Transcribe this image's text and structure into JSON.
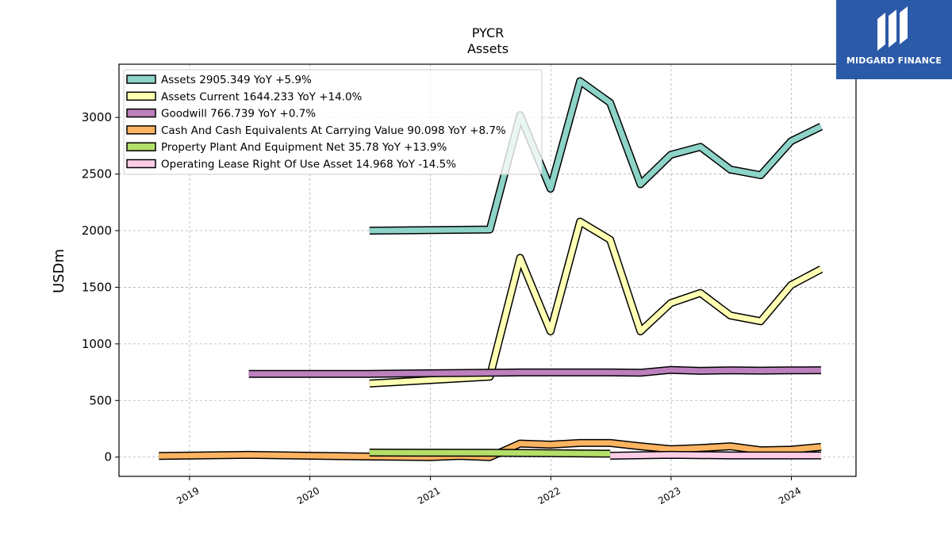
{
  "brand": {
    "name": "MIDGARD FINANCE",
    "color": "#2b5aa8"
  },
  "chart_data": {
    "type": "line",
    "title": "PYCR",
    "subtitle": "Assets",
    "ylabel": "USDm",
    "xlabel": "",
    "ylim": [
      -170,
      3470
    ],
    "xlim": [
      "2018-06-01",
      "2024-07-15"
    ],
    "yticks": [
      0,
      500,
      1000,
      1500,
      2000,
      2500,
      3000
    ],
    "xticks": [
      "2019",
      "2020",
      "2021",
      "2022",
      "2023",
      "2024"
    ],
    "grid": true,
    "legend_position": "top-left",
    "series": [
      {
        "name": "Assets  2905.349 YoY +5.9%",
        "color": "#8dd3c7",
        "points": [
          [
            "2020-06-30",
            2000
          ],
          [
            "2021-06-30",
            2010
          ],
          [
            "2021-09-30",
            3020
          ],
          [
            "2021-12-31",
            2370
          ],
          [
            "2022-03-31",
            3320
          ],
          [
            "2022-06-30",
            3130
          ],
          [
            "2022-09-30",
            2410
          ],
          [
            "2022-12-31",
            2670
          ],
          [
            "2023-03-31",
            2740
          ],
          [
            "2023-06-30",
            2540
          ],
          [
            "2023-09-30",
            2490
          ],
          [
            "2023-12-31",
            2790
          ],
          [
            "2024-03-31",
            2920
          ]
        ]
      },
      {
        "name": "Assets Current  1644.233 YoY +14.0%",
        "color": "#ffffb3",
        "points": [
          [
            "2020-06-30",
            650
          ],
          [
            "2021-06-30",
            710
          ],
          [
            "2021-09-30",
            1760
          ],
          [
            "2021-12-31",
            1110
          ],
          [
            "2022-03-31",
            2080
          ],
          [
            "2022-06-30",
            1920
          ],
          [
            "2022-09-30",
            1110
          ],
          [
            "2022-12-31",
            1360
          ],
          [
            "2023-03-31",
            1450
          ],
          [
            "2023-06-30",
            1250
          ],
          [
            "2023-09-30",
            1200
          ],
          [
            "2023-12-31",
            1520
          ],
          [
            "2024-03-31",
            1660
          ]
        ]
      },
      {
        "name": "Goodwill  766.739 YoY +0.7%",
        "color": "#bc80bd",
        "points": [
          [
            "2019-06-30",
            735
          ],
          [
            "2020-06-30",
            735
          ],
          [
            "2021-06-30",
            745
          ],
          [
            "2021-09-30",
            748
          ],
          [
            "2021-12-31",
            748
          ],
          [
            "2022-03-31",
            748
          ],
          [
            "2022-06-30",
            748
          ],
          [
            "2022-09-30",
            745
          ],
          [
            "2022-12-31",
            770
          ],
          [
            "2023-03-31",
            762
          ],
          [
            "2023-06-30",
            766
          ],
          [
            "2023-09-30",
            764
          ],
          [
            "2023-12-31",
            766
          ],
          [
            "2024-03-31",
            767
          ]
        ]
      },
      {
        "name": "Cash And Cash Equivalents At Carrying Value  90.098 YoY +8.7%",
        "color": "#fdb462",
        "points": [
          [
            "2018-09-30",
            10
          ],
          [
            "2019-06-30",
            20
          ],
          [
            "2020-06-30",
            5
          ],
          [
            "2020-12-31",
            0
          ],
          [
            "2021-03-31",
            10
          ],
          [
            "2021-06-30",
            0
          ],
          [
            "2021-09-30",
            120
          ],
          [
            "2021-12-31",
            110
          ],
          [
            "2022-03-31",
            125
          ],
          [
            "2022-06-30",
            125
          ],
          [
            "2022-09-30",
            95
          ],
          [
            "2022-12-31",
            70
          ],
          [
            "2023-03-31",
            80
          ],
          [
            "2023-06-30",
            95
          ],
          [
            "2023-09-30",
            60
          ],
          [
            "2023-12-31",
            65
          ],
          [
            "2024-03-31",
            90
          ]
        ]
      },
      {
        "name": "Property Plant And Equipment Net  35.78 YoY +13.9%",
        "color": "#b3de69",
        "points": [
          [
            "2020-06-30",
            40
          ],
          [
            "2021-06-30",
            38
          ],
          [
            "2021-12-31",
            35
          ],
          [
            "2022-06-30",
            30
          ]
        ]
      },
      {
        "name": "Operating Lease Right Of Use Asset  14.968 YoY -14.5%",
        "color": "#fccde5",
        "points": [
          [
            "2022-06-30",
            12
          ],
          [
            "2022-12-31",
            20
          ],
          [
            "2023-06-30",
            15
          ],
          [
            "2023-12-31",
            15
          ],
          [
            "2024-03-31",
            15
          ]
        ]
      }
    ]
  }
}
